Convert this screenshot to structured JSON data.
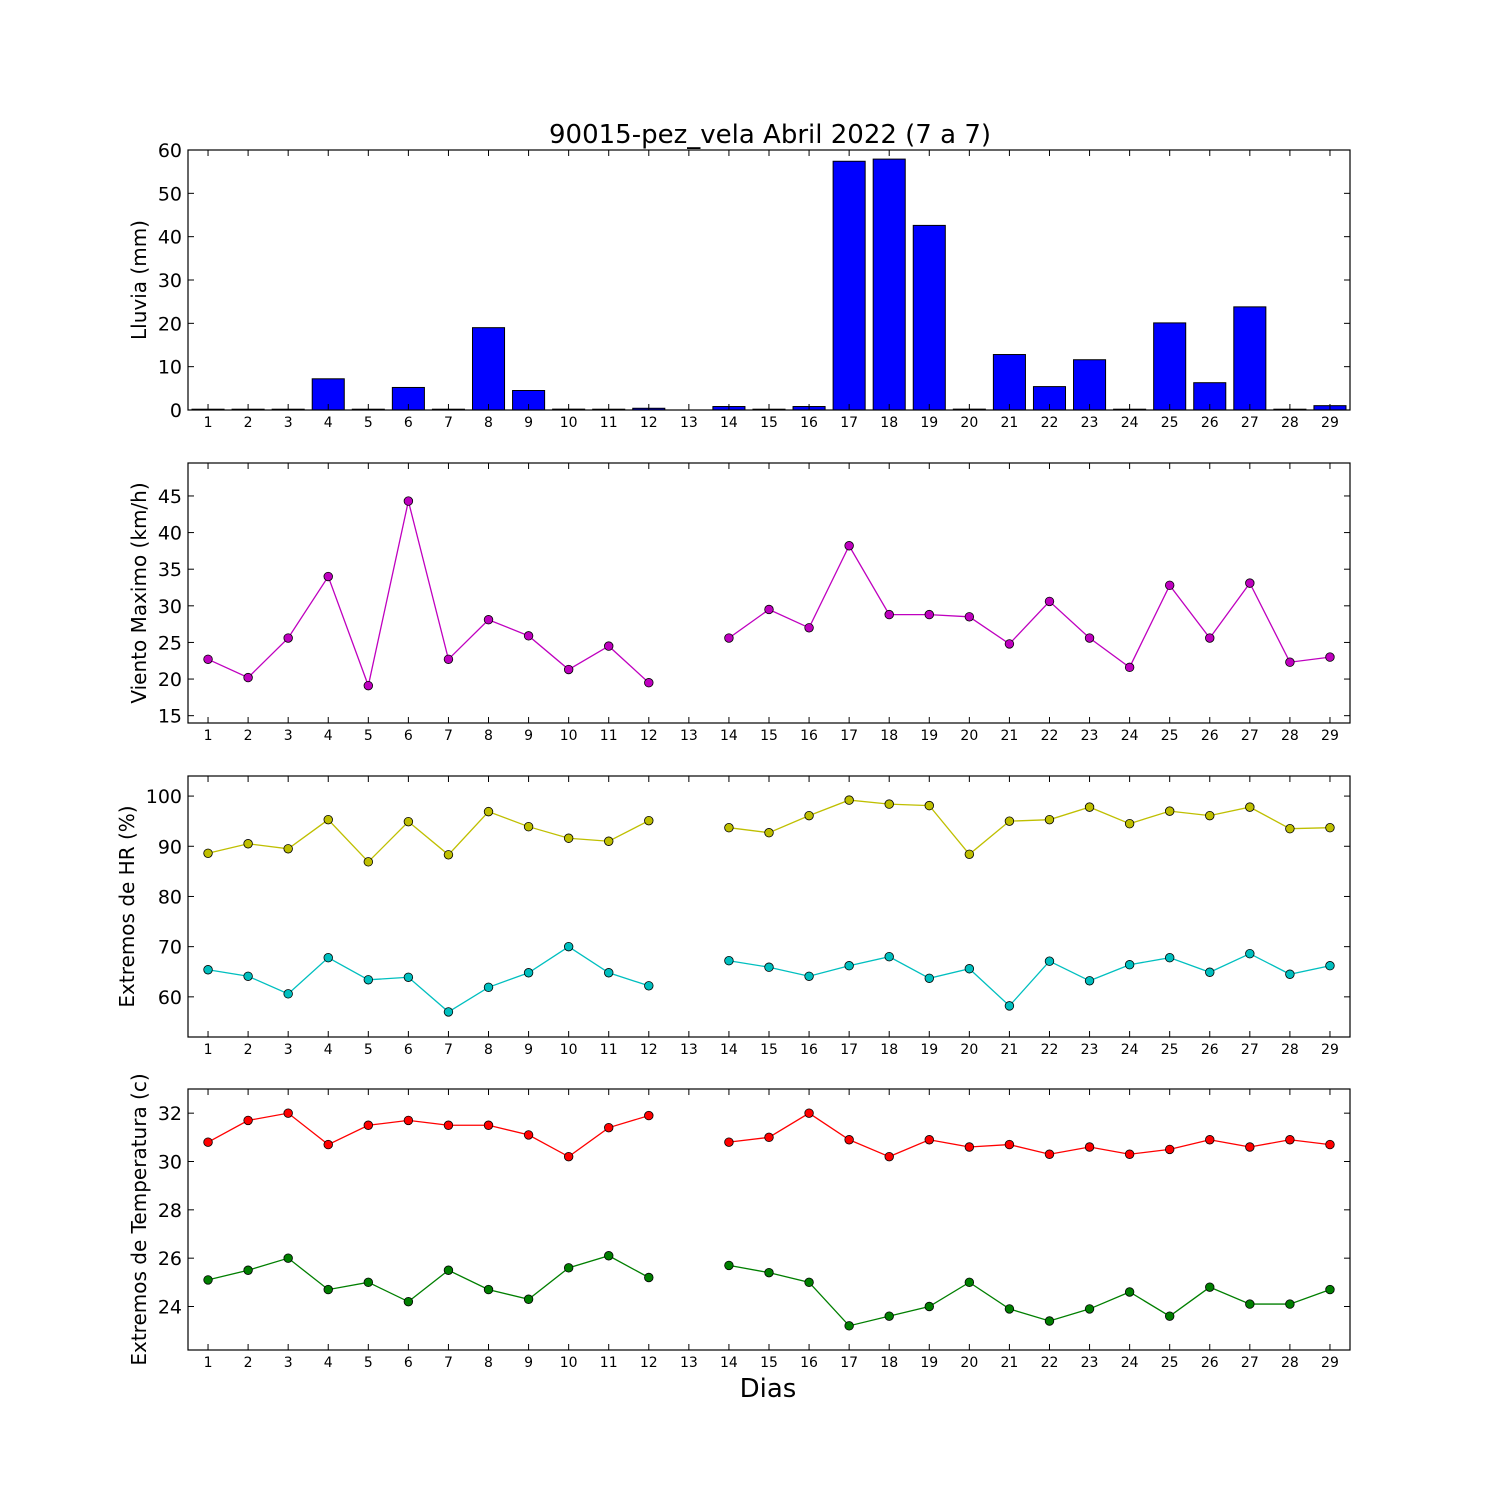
{
  "title": "90015-pez_vela Abril 2022  (7 a 7)",
  "xlabel": "Dias",
  "days": [
    1,
    2,
    3,
    4,
    5,
    6,
    7,
    8,
    9,
    10,
    11,
    12,
    13,
    14,
    15,
    16,
    17,
    18,
    19,
    20,
    21,
    22,
    23,
    24,
    25,
    26,
    27,
    28,
    29
  ],
  "chart_data": [
    {
      "type": "bar",
      "ylabel": "Lluvia (mm)",
      "ylim": [
        0,
        60
      ],
      "yticks": [
        0,
        10,
        20,
        30,
        40,
        50,
        60
      ],
      "grid": false,
      "series": [
        {
          "name": "",
          "color": "#0000ff",
          "values": [
            0,
            0,
            0,
            7.2,
            0,
            5.2,
            0,
            19.0,
            4.5,
            0.2,
            0,
            0.4,
            null,
            0.8,
            0,
            0.8,
            57.4,
            57.9,
            42.6,
            0.2,
            12.8,
            5.4,
            11.6,
            0,
            20.1,
            6.3,
            23.8,
            0,
            1.0
          ]
        }
      ]
    },
    {
      "type": "line",
      "ylabel": "Viento Maximo (km/h)",
      "ylim": [
        14,
        49.5
      ],
      "yticks": [
        15,
        20,
        25,
        30,
        35,
        40,
        45
      ],
      "grid": false,
      "series": [
        {
          "name": "",
          "color": "#bf00bf",
          "values": [
            22.7,
            20.2,
            25.6,
            34.0,
            19.1,
            44.3,
            22.7,
            28.1,
            25.9,
            21.3,
            24.5,
            19.5,
            null,
            25.6,
            29.5,
            27.0,
            38.2,
            28.8,
            28.8,
            28.5,
            24.8,
            30.6,
            25.6,
            21.6,
            32.8,
            25.6,
            33.1,
            22.3,
            23.0
          ]
        }
      ]
    },
    {
      "type": "line",
      "ylabel": "Extremos de HR (%)",
      "ylim": [
        52,
        104
      ],
      "yticks": [
        60,
        70,
        80,
        90,
        100
      ],
      "grid": false,
      "series": [
        {
          "name": "",
          "color": "#bfbf00",
          "values": [
            88.6,
            90.5,
            89.5,
            95.3,
            86.9,
            94.9,
            88.3,
            96.9,
            93.9,
            91.6,
            91.0,
            95.1,
            null,
            93.7,
            92.7,
            96.1,
            99.2,
            98.4,
            98.1,
            88.4,
            95.0,
            95.3,
            97.8,
            94.5,
            97.0,
            96.1,
            97.8,
            93.5,
            93.7
          ]
        },
        {
          "name": "",
          "color": "#00bfbf",
          "values": [
            65.4,
            64.1,
            60.6,
            67.8,
            63.4,
            63.9,
            57.0,
            61.9,
            64.8,
            70.0,
            64.8,
            62.2,
            null,
            67.2,
            65.9,
            64.1,
            66.2,
            68.0,
            63.7,
            65.6,
            58.2,
            67.1,
            63.2,
            66.4,
            67.8,
            64.9,
            68.6,
            64.5,
            66.2
          ]
        }
      ]
    },
    {
      "type": "line",
      "ylabel": "Extremos de Temperatura (c)",
      "ylim": [
        22.2,
        33.0
      ],
      "yticks": [
        24,
        26,
        28,
        30,
        32
      ],
      "grid": false,
      "series": [
        {
          "name": "",
          "color": "#ff0000",
          "values": [
            30.8,
            31.7,
            32.0,
            30.7,
            31.5,
            31.7,
            31.5,
            31.5,
            31.1,
            30.2,
            31.4,
            31.9,
            null,
            30.8,
            31.0,
            32.0,
            30.9,
            30.2,
            30.9,
            30.6,
            30.7,
            30.3,
            30.6,
            30.3,
            30.5,
            30.9,
            30.6,
            30.9,
            30.7
          ]
        },
        {
          "name": "",
          "color": "#007f00",
          "values": [
            25.1,
            25.5,
            26.0,
            24.7,
            25.0,
            24.2,
            25.5,
            24.7,
            24.3,
            25.6,
            26.1,
            25.2,
            null,
            25.7,
            25.4,
            25.0,
            23.2,
            23.6,
            24.0,
            25.0,
            23.9,
            23.4,
            23.9,
            24.6,
            23.6,
            24.8,
            24.1,
            24.1,
            24.7
          ]
        }
      ]
    }
  ]
}
